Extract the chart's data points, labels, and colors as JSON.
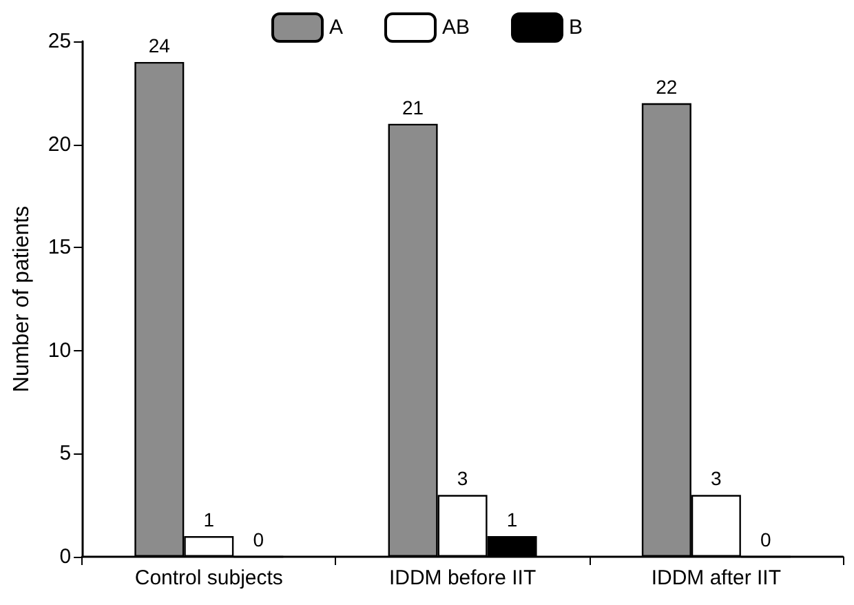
{
  "chart_data": {
    "type": "bar",
    "ylabel": "Number of patients",
    "categories": [
      "Control subjects",
      "IDDM before IIT",
      "IDDM after IIT"
    ],
    "series": [
      {
        "name": "A",
        "color": "#8c8c8c",
        "values": [
          24,
          21,
          22
        ]
      },
      {
        "name": "AB",
        "color": "#ffffff",
        "values": [
          1,
          3,
          3
        ]
      },
      {
        "name": "B",
        "color": "#000000",
        "values": [
          0,
          1,
          0
        ]
      }
    ],
    "ylim": [
      0,
      25
    ],
    "yticks": [
      0,
      5,
      10,
      15,
      20,
      25
    ],
    "grid": false,
    "legend": "top",
    "data_labels": true
  }
}
